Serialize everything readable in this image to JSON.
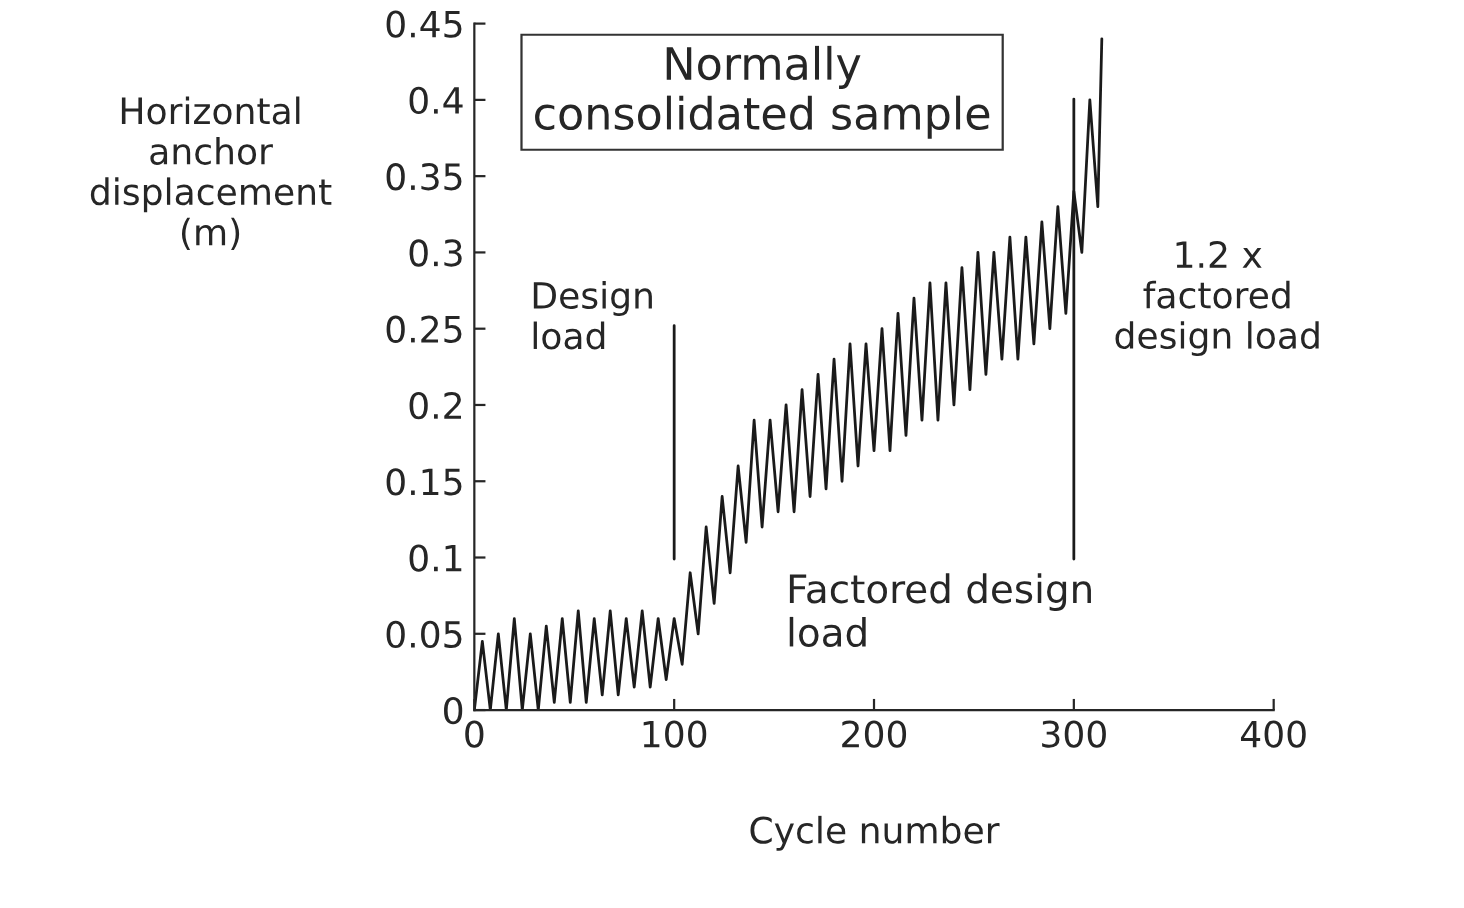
{
  "chart_data": {
    "type": "line",
    "xlabel": "Cycle number",
    "ylabel": "Horizontal\nanchor\ndisplacement\n(m)",
    "x": [
      0,
      4,
      8,
      12,
      16,
      20,
      24,
      28,
      32,
      36,
      40,
      44,
      48,
      52,
      56,
      60,
      64,
      68,
      72,
      76,
      80,
      84,
      88,
      92,
      96,
      100,
      104,
      108,
      112,
      116,
      120,
      124,
      128,
      132,
      136,
      140,
      144,
      148,
      152,
      156,
      160,
      164,
      168,
      172,
      176,
      180,
      184,
      188,
      192,
      196,
      200,
      204,
      208,
      212,
      216,
      220,
      224,
      228,
      232,
      236,
      240,
      244,
      248,
      252,
      256,
      260,
      264,
      268,
      272,
      276,
      280,
      284,
      288,
      292,
      296,
      300,
      304,
      308,
      312,
      314
    ],
    "series": [
      {
        "color": "#1a1a1a",
        "values": [
          0.0,
          0.045,
          0.0,
          0.05,
          0.0,
          0.06,
          0.0,
          0.05,
          0.0,
          0.055,
          0.005,
          0.06,
          0.005,
          0.065,
          0.005,
          0.06,
          0.01,
          0.065,
          0.01,
          0.06,
          0.015,
          0.065,
          0.015,
          0.06,
          0.02,
          0.06,
          0.03,
          0.09,
          0.05,
          0.12,
          0.07,
          0.14,
          0.09,
          0.16,
          0.11,
          0.19,
          0.12,
          0.19,
          0.13,
          0.2,
          0.13,
          0.21,
          0.14,
          0.22,
          0.145,
          0.23,
          0.15,
          0.24,
          0.16,
          0.24,
          0.17,
          0.25,
          0.17,
          0.26,
          0.18,
          0.27,
          0.19,
          0.28,
          0.19,
          0.28,
          0.2,
          0.29,
          0.21,
          0.3,
          0.22,
          0.3,
          0.23,
          0.31,
          0.23,
          0.31,
          0.24,
          0.32,
          0.25,
          0.33,
          0.26,
          0.34,
          0.3,
          0.4,
          0.33,
          0.44
        ]
      }
    ],
    "xlim": [
      0,
      400
    ],
    "xticks": [
      0,
      100,
      200,
      300,
      400
    ],
    "ylim": [
      0,
      0.45
    ],
    "yticks": [
      0,
      0.05,
      0.1,
      0.15,
      0.2,
      0.25,
      0.3,
      0.35,
      0.4,
      0.45
    ],
    "ref_lines": [
      {
        "axis": "x",
        "value": 100,
        "color": "#1a1a1a"
      },
      {
        "axis": "x",
        "value": 300,
        "color": "#1a1a1a"
      }
    ],
    "annotations": [
      "Normally\nconsolidated sample",
      "Design\nload",
      "Factored design\nload",
      "1.2 x\nfactored\ndesign load"
    ],
    "grid": false,
    "legend": false
  }
}
